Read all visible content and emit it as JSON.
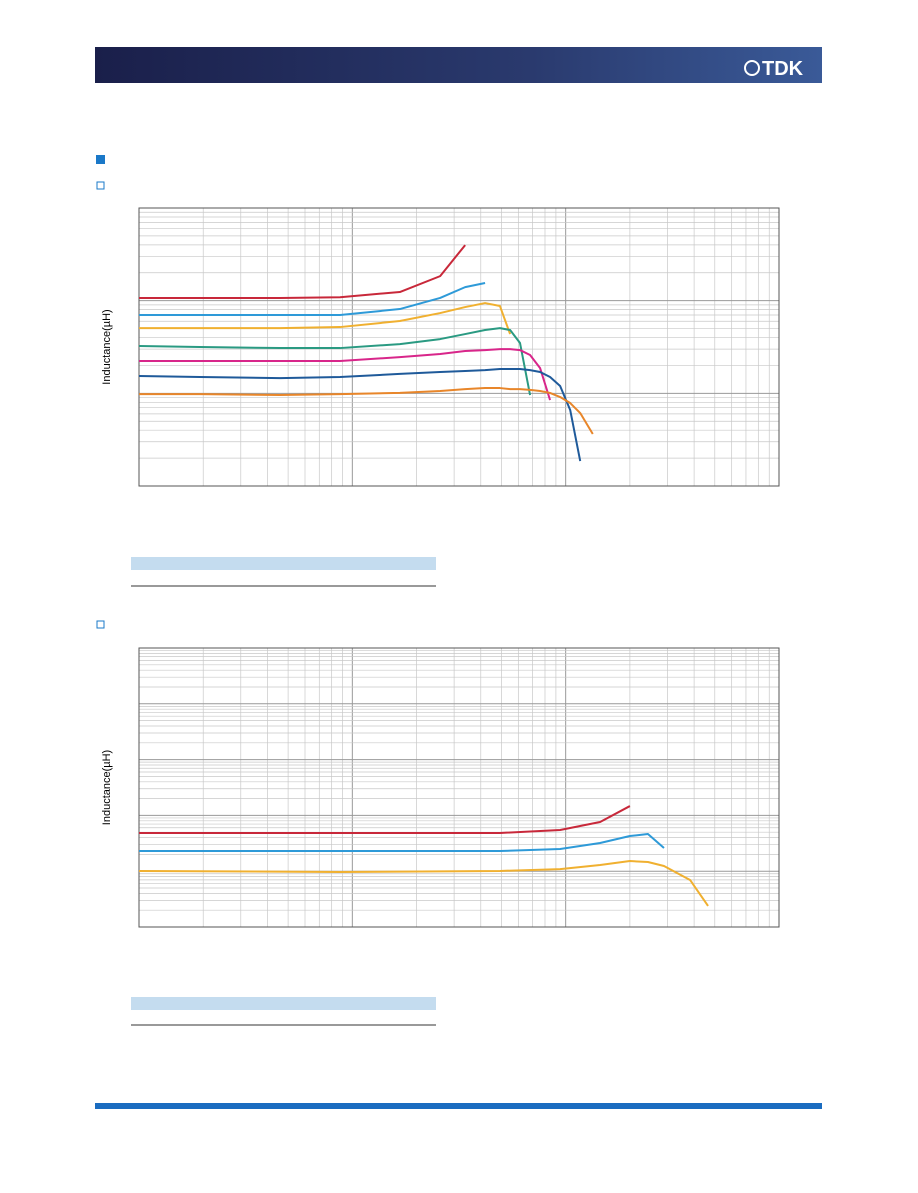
{
  "header": {
    "logo": "TDK"
  },
  "chart_data": [
    {
      "type": "line",
      "ylabel": "Inductance(µH)",
      "xscale": "log",
      "yscale": "log",
      "grid": true,
      "xlim": [
        1,
        1000
      ],
      "ylim": [
        1,
        1000
      ],
      "x": [
        1,
        1.93,
        4.58,
        8.76,
        16.7,
        25.8,
        33.8,
        41.9,
        49.2,
        54.9,
        61.1,
        68.1,
        75.9,
        84.5,
        94.2,
        105,
        117,
        134
      ],
      "series": [
        {
          "color": "#c8283a",
          "values": [
            107,
            107,
            107,
            109,
            124,
            184,
            398,
            null,
            null,
            null,
            null,
            null,
            null,
            null,
            null,
            null,
            null,
            null
          ]
        },
        {
          "color": "#2e9ad8",
          "values": [
            70,
            70,
            70,
            70,
            81.2,
            107,
            140,
            155,
            null,
            null,
            null,
            null,
            null,
            null,
            null,
            null,
            null,
            null
          ]
        },
        {
          "color": "#f0b030",
          "values": [
            50.6,
            50.6,
            50.6,
            51.9,
            60.3,
            73.5,
            85.3,
            94.2,
            87.5,
            43.6,
            null,
            null,
            null,
            null,
            null,
            null,
            null,
            null
          ]
        },
        {
          "color": "#2a9a82",
          "values": [
            32.4,
            31.6,
            30.8,
            30.8,
            34.0,
            38.5,
            43.6,
            48.2,
            50.6,
            48.2,
            34.9,
            9.59,
            null,
            null,
            null,
            null,
            null,
            null
          ]
        },
        {
          "color": "#d8268a",
          "values": [
            22.3,
            22.3,
            22.3,
            22.3,
            24.6,
            26.6,
            28.6,
            29.3,
            30.0,
            30.0,
            29.3,
            25.9,
            18.7,
            8.47,
            null,
            null,
            null,
            null
          ]
        },
        {
          "color": "#1f5a9a",
          "values": [
            15.4,
            15.0,
            14.6,
            15.0,
            16.2,
            17.0,
            17.4,
            17.8,
            18.3,
            18.3,
            18.3,
            17.8,
            17.0,
            15.0,
            12.0,
            6.61,
            1.86,
            null
          ]
        },
        {
          "color": "#e8862a",
          "values": [
            9.82,
            9.82,
            9.59,
            9.82,
            10.1,
            10.6,
            11.1,
            11.4,
            11.4,
            11.1,
            11.1,
            10.9,
            10.6,
            10.1,
            9.12,
            7.86,
            6.13,
            3.64
          ]
        }
      ]
    },
    {
      "type": "line",
      "ylabel": "Inductance(µH)",
      "xscale": "log",
      "yscale": "log",
      "grid": true,
      "xlim": [
        1,
        1000
      ],
      "ylim": [
        1,
        100000
      ],
      "x": [
        1,
        8.76,
        49.2,
        94.2,
        145,
        200,
        243,
        289,
        383,
        465
      ],
      "series": [
        {
          "color": "#c8283a",
          "values": [
            48.4,
            48.4,
            48.4,
            54.7,
            76.2,
            147,
            null,
            null,
            null,
            null
          ]
        },
        {
          "color": "#2e9ad8",
          "values": [
            23.0,
            23.0,
            23.0,
            25.0,
            32.0,
            42.7,
            46.4,
            26.1,
            null,
            null
          ]
        },
        {
          "color": "#f0b030",
          "values": [
            10.1,
            9.68,
            10.1,
            10.9,
            12.9,
            15.2,
            14.6,
            12.4,
            6.96,
            2.38
          ]
        }
      ]
    }
  ]
}
